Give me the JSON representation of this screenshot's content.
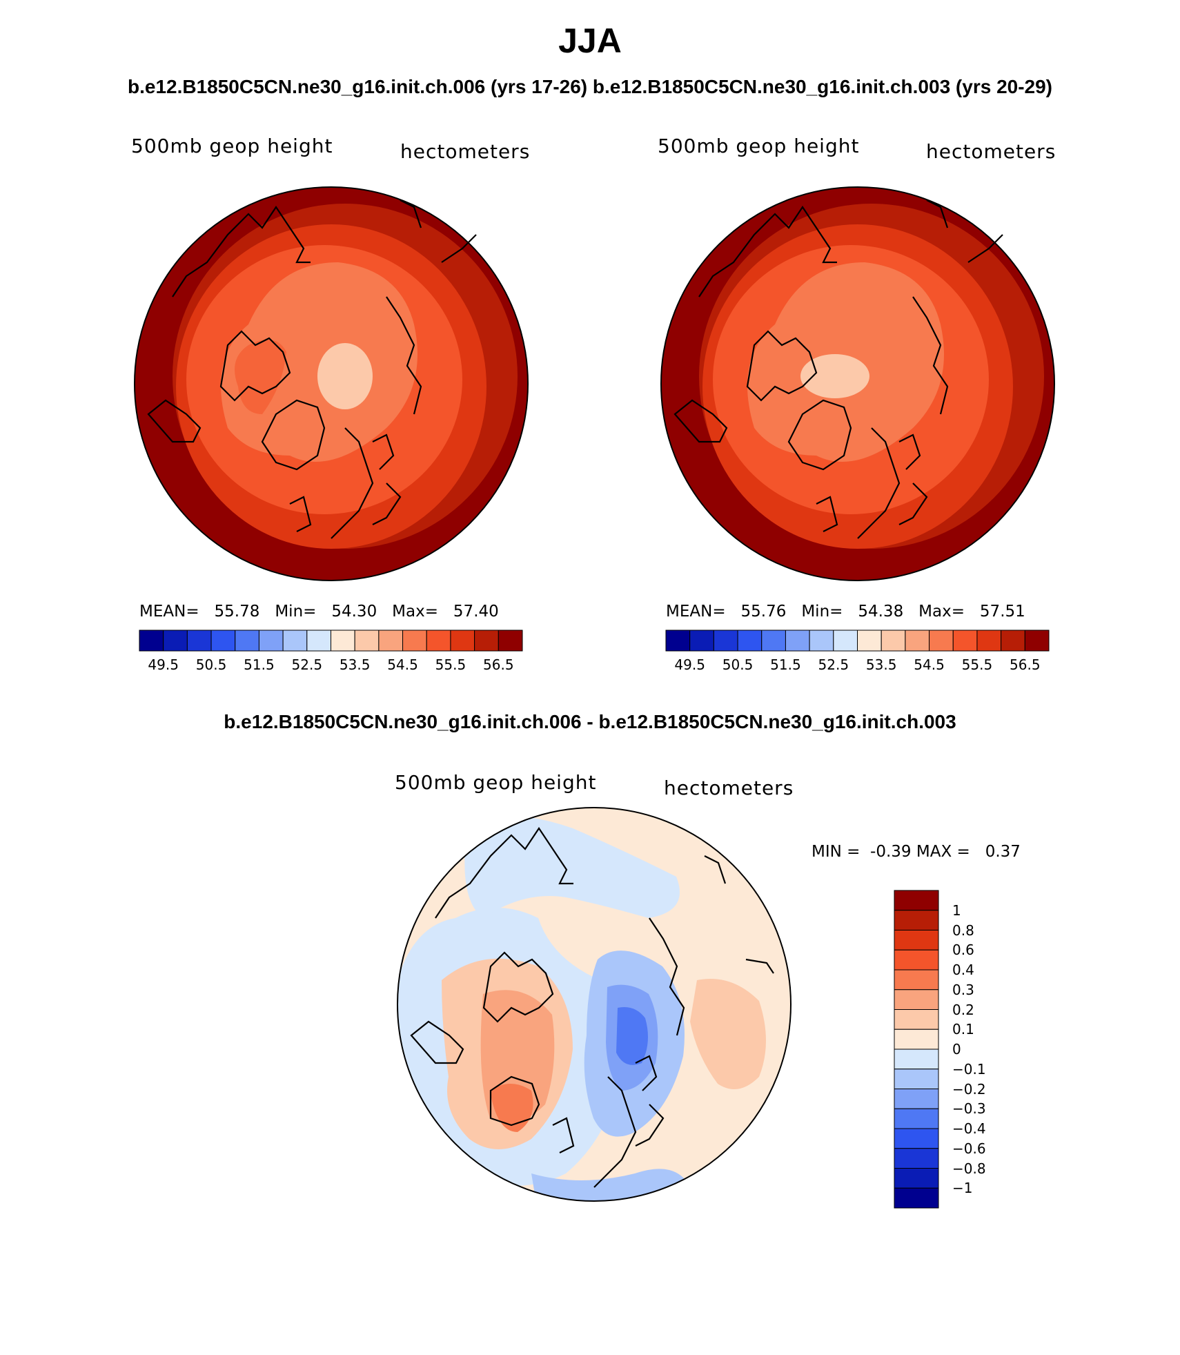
{
  "title": "JJA",
  "subtitle_top": "b.e12.B1850C5CN.ne30_g16.init.ch.006 (yrs 17-26)  b.e12.B1850C5CN.ne30_g16.init.ch.003 (yrs 20-29)",
  "subtitle_diff": "b.e12.B1850C5CN.ne30_g16.init.ch.006 - b.e12.B1850C5CN.ne30_g16.init.ch.003",
  "colors": {
    "field": [
      "#00008f",
      "#0a1cb5",
      "#1a36d6",
      "#2e55f0",
      "#4f78f4",
      "#7fa1f7",
      "#aac6fa",
      "#d5e7fc",
      "#fde9d6",
      "#fcc9aa",
      "#f9a47e",
      "#f77a4f",
      "#f4552b",
      "#df3712",
      "#b71e06",
      "#8f0000"
    ],
    "diff": [
      "#00008f",
      "#0a1cb5",
      "#1a36d6",
      "#2e55f0",
      "#4f78f4",
      "#7fa1f7",
      "#aac6fa",
      "#d5e7fc",
      "#fde9d6",
      "#fcc9aa",
      "#f9a47e",
      "#f77a4f",
      "#f4552b",
      "#df3712",
      "#b71e06",
      "#8f0000"
    ]
  },
  "panels": [
    {
      "name": "b.e12.B1850C5CN.ne30_g16.init.ch.006 (yrs 17-26)",
      "left_label": "500mb geop height",
      "right_label": "hectometers",
      "mean_label": "MEAN=",
      "mean": "55.78",
      "min_label": "Min=",
      "min": "54.30",
      "max_label": "Max=",
      "max": "57.40"
    },
    {
      "name": "b.e12.B1850C5CN.ne30_g16.init.ch.003 (yrs 20-29)",
      "left_label": "500mb geop height",
      "right_label": "hectometers",
      "mean_label": "MEAN=",
      "mean": "55.76",
      "min_label": "Min=",
      "min": "54.38",
      "max_label": "Max=",
      "max": "57.51"
    }
  ],
  "field_ticks": [
    "49.5",
    "50.5",
    "51.5",
    "52.5",
    "53.5",
    "54.5",
    "55.5",
    "56.5"
  ],
  "diff_panel": {
    "left_label": "500mb geop height",
    "right_label": "hectometers",
    "min_label": "MIN =",
    "min": "-0.39",
    "max_label": "MAX =",
    "max": "0.37",
    "ticks": [
      "1",
      "0.8",
      "0.6",
      "0.4",
      "0.3",
      "0.2",
      "0.1",
      "0",
      "−0.1",
      "−0.2",
      "−0.3",
      "−0.4",
      "−0.6",
      "−0.8",
      "−1"
    ]
  }
}
